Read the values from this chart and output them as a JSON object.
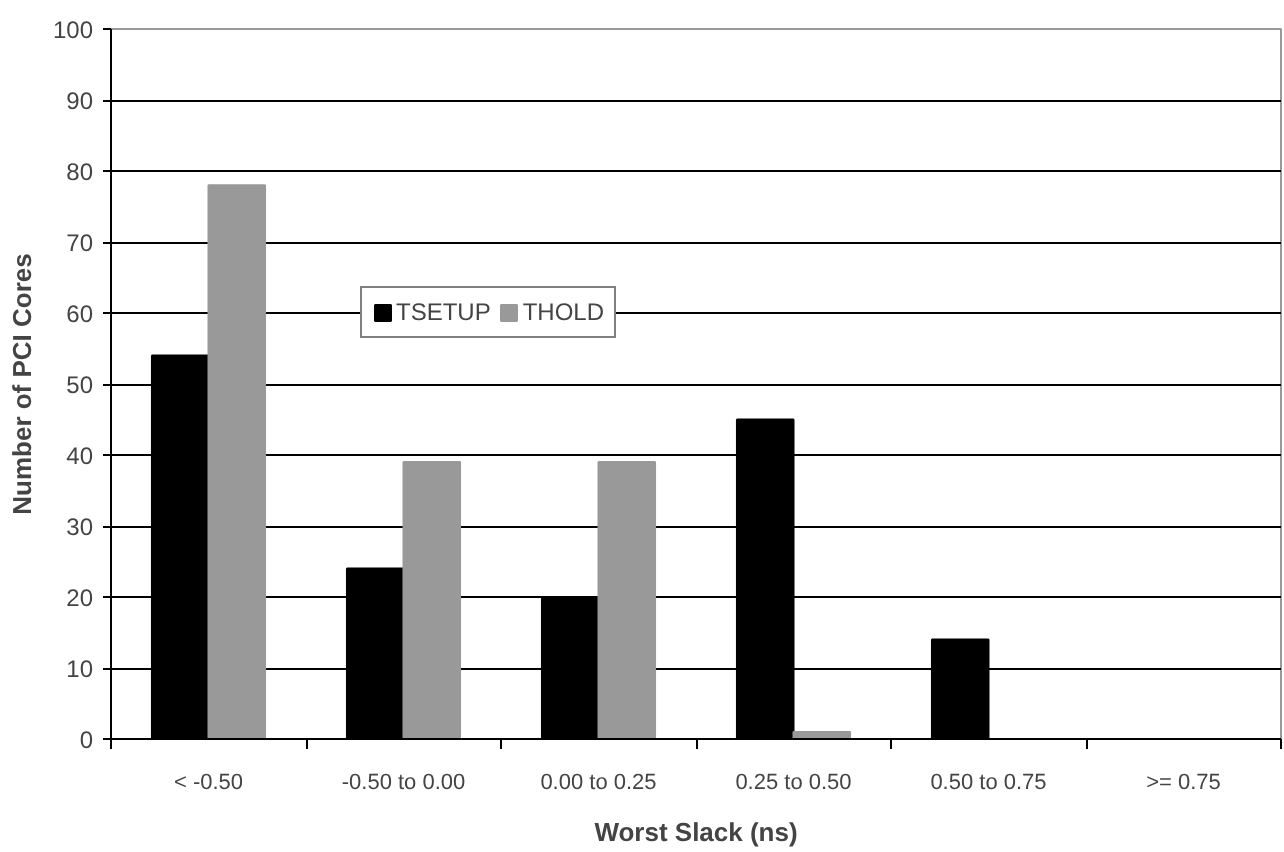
{
  "chart_data": {
    "type": "bar",
    "xlabel": "Worst Slack (ns)",
    "ylabel": "Number of PCI Cores",
    "categories": [
      "< -0.50",
      "-0.50 to 0.00",
      "0.00 to 0.25",
      "0.25 to 0.50",
      "0.50 to 0.75",
      ">= 0.75"
    ],
    "series": [
      {
        "name": "TSETUP",
        "color": "#000000",
        "values": [
          54,
          24,
          20,
          45,
          14,
          0
        ]
      },
      {
        "name": "THOLD",
        "color": "#999999",
        "values": [
          78,
          39,
          39,
          1,
          0,
          0
        ]
      }
    ],
    "ylim": [
      0,
      100
    ],
    "yticks": [
      0,
      10,
      20,
      30,
      40,
      50,
      60,
      70,
      80,
      90,
      100
    ],
    "grid": "y",
    "legend": "top left"
  }
}
